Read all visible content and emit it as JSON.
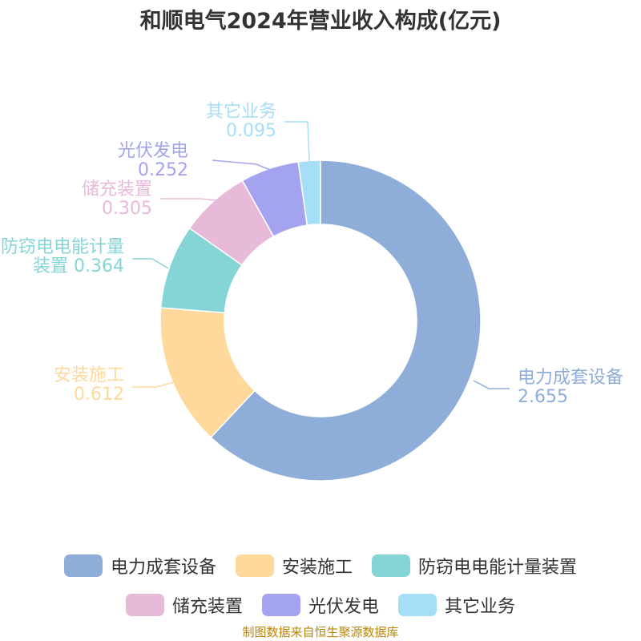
{
  "chart_data": {
    "type": "pie",
    "title": "和顺电气2024年营业收入构成(亿元)",
    "donut": true,
    "categories": [
      "电力成套设备",
      "安装施工",
      "防窃电电能计量装置",
      "储充装置",
      "光伏发电",
      "其它业务"
    ],
    "values": [
      2.655,
      0.612,
      0.364,
      0.305,
      0.252,
      0.095
    ],
    "value_labels": [
      "2.655",
      "0.612",
      "0.364",
      "0.305",
      "0.252",
      "0.095"
    ],
    "colors": [
      "#8fadd9",
      "#fed99b",
      "#86d5d6",
      "#e7bad9",
      "#a3a3f0",
      "#a6def8"
    ],
    "legend": "bottom"
  },
  "source_note": "制图数据来自恒生聚源数据库"
}
